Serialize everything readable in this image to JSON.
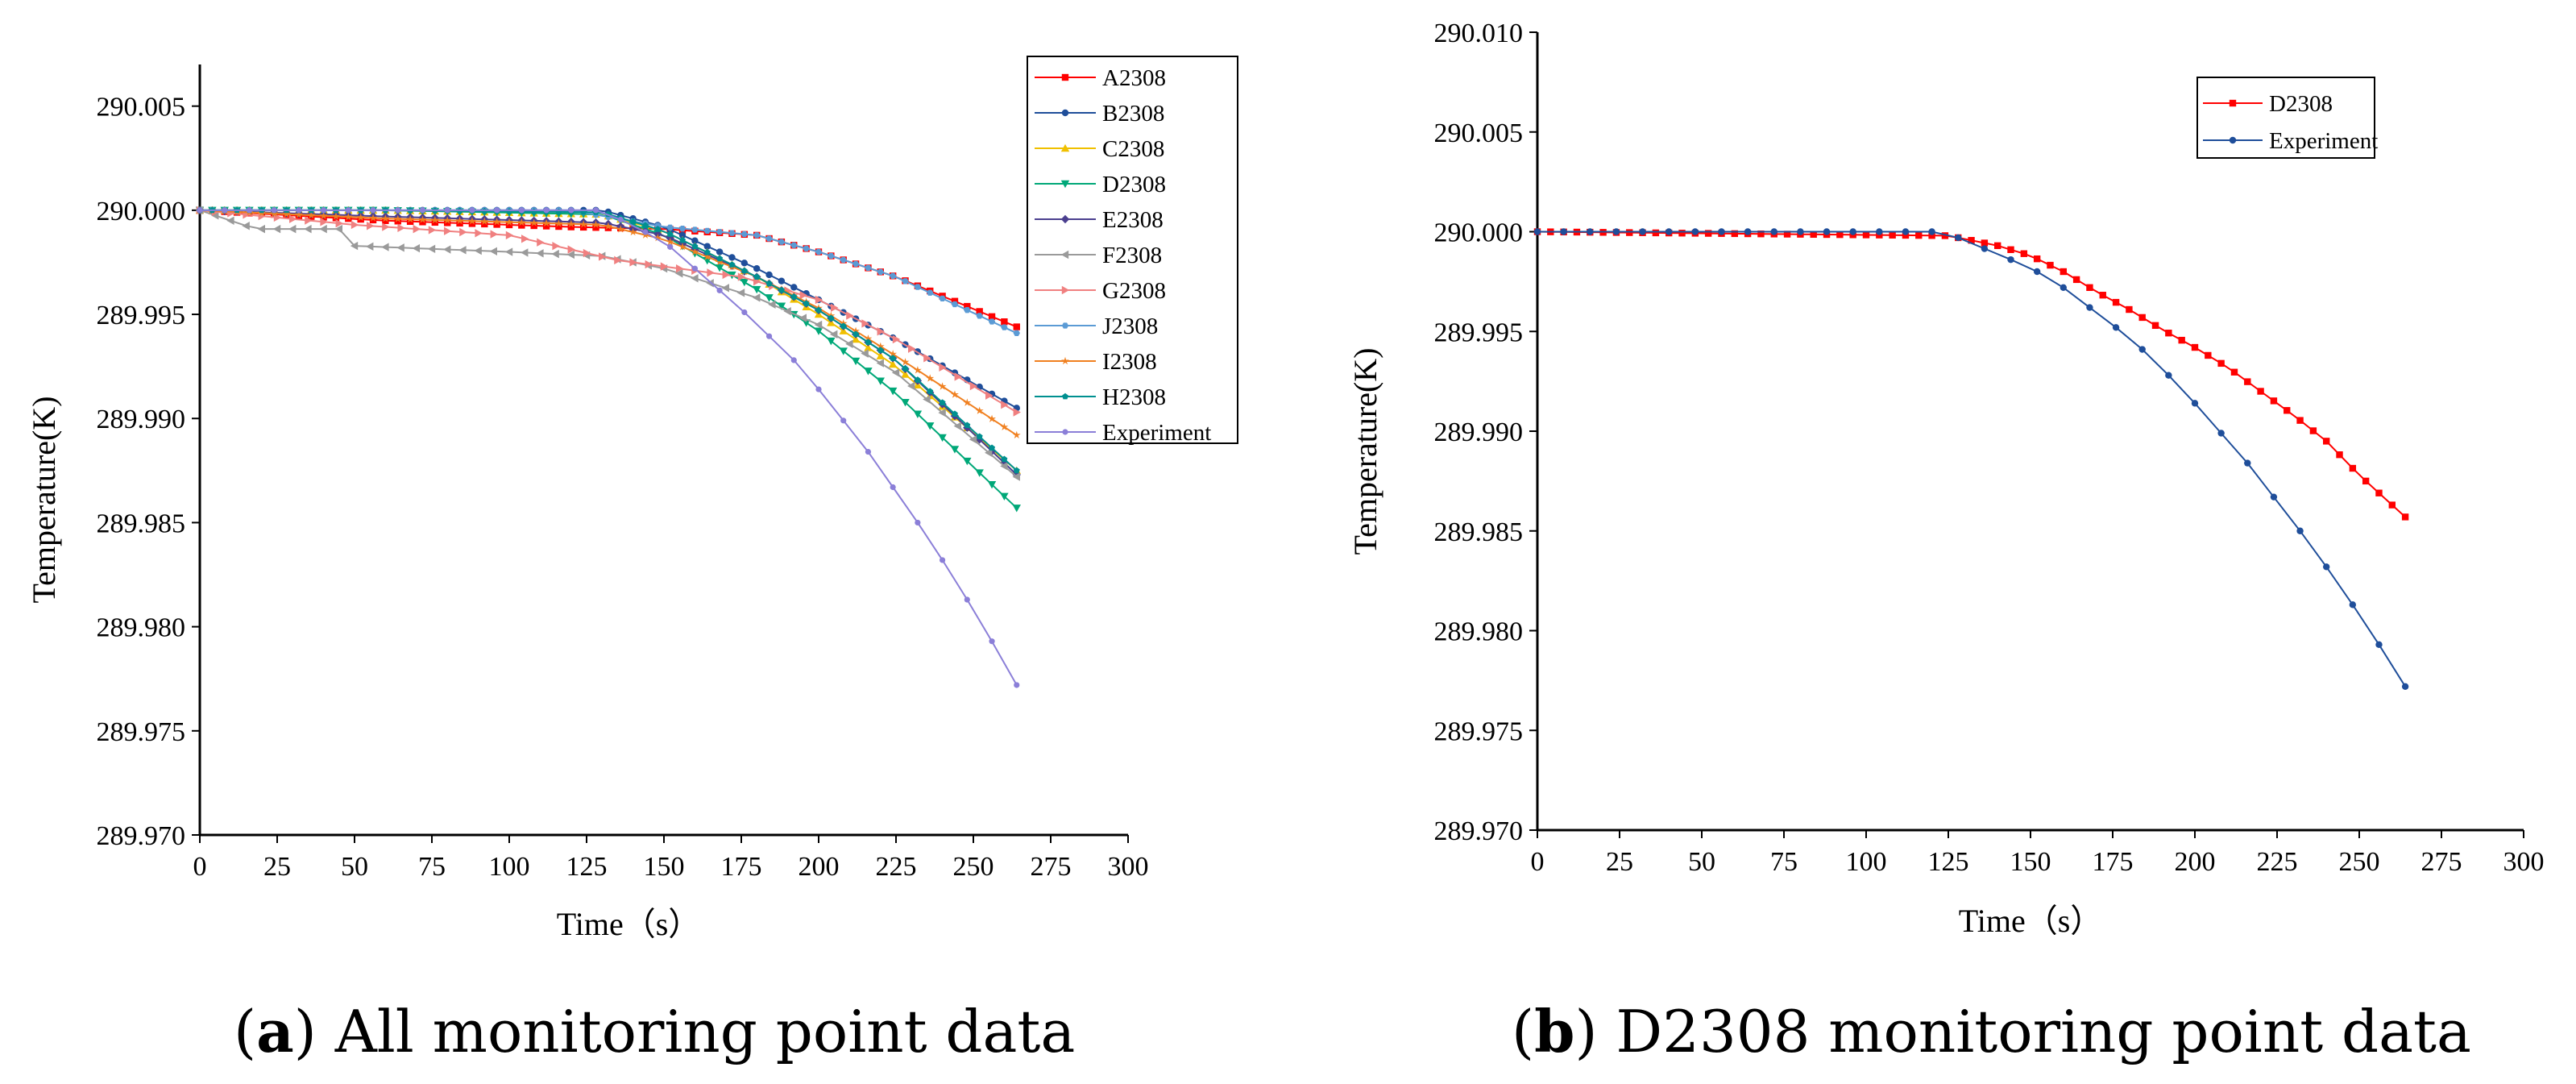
{
  "chart_data": [
    {
      "type": "line",
      "caption": {
        "label": "a",
        "text": " All monitoring point data"
      },
      "xlabel": "Time（s）",
      "ylabel": "Temperature(K)",
      "xlim": [
        0,
        300
      ],
      "ylim": [
        289.97,
        290.007
      ],
      "xticks": [
        "0",
        "25",
        "50",
        "75",
        "100",
        "125",
        "150",
        "175",
        "200",
        "225",
        "250",
        "275",
        "300"
      ],
      "yticks": [
        "289.970",
        "289.975",
        "289.980",
        "289.985",
        "289.990",
        "289.995",
        "290.000",
        "290.005"
      ],
      "legend_position": "top-right",
      "series": [
        {
          "name": "A2308",
          "color": "#ff0000",
          "marker": "square",
          "step": 4,
          "x_end": 264,
          "knots": [
            [
              0,
              290.0
            ],
            [
              60,
              289.9995
            ],
            [
              120,
              289.9992
            ],
            [
              150,
              289.9991
            ],
            [
              180,
              289.9988
            ],
            [
              200,
              289.998
            ],
            [
              225,
              289.9968
            ],
            [
              264,
              289.9944
            ]
          ]
        },
        {
          "name": "B2308",
          "color": "#1f4e9a",
          "marker": "circle",
          "step": 4,
          "x_end": 264,
          "knots": [
            [
              0,
              290.0
            ],
            [
              60,
              290.0
            ],
            [
              130,
              290.0
            ],
            [
              150,
              289.9992
            ],
            [
              180,
              289.9972
            ],
            [
              200,
              289.9957
            ],
            [
              225,
              289.9938
            ],
            [
              264,
              289.9905
            ]
          ]
        },
        {
          "name": "C2308",
          "color": "#f0c000",
          "marker": "triangle-up",
          "step": 4,
          "x_end": 264,
          "knots": [
            [
              0,
              290.0
            ],
            [
              60,
              290.0
            ],
            [
              130,
              289.9998
            ],
            [
              150,
              289.999
            ],
            [
              180,
              289.9968
            ],
            [
              200,
              289.995
            ],
            [
              225,
              289.9925
            ],
            [
              264,
              289.9875
            ]
          ]
        },
        {
          "name": "D2308",
          "color": "#00a878",
          "marker": "triangle-down",
          "step": 4,
          "x_end": 264,
          "knots": [
            [
              0,
              290.0
            ],
            [
              60,
              290.0
            ],
            [
              130,
              289.9998
            ],
            [
              150,
              289.9988
            ],
            [
              180,
              289.9962
            ],
            [
              200,
              289.9942
            ],
            [
              225,
              289.9912
            ],
            [
              264,
              289.9857
            ]
          ]
        },
        {
          "name": "E2308",
          "color": "#4b3f8f",
          "marker": "diamond",
          "step": 4,
          "x_end": 264,
          "knots": [
            [
              0,
              290.0
            ],
            [
              60,
              289.9997
            ],
            [
              130,
              289.9994
            ],
            [
              150,
              289.9988
            ],
            [
              180,
              289.9968
            ],
            [
              200,
              289.9952
            ],
            [
              225,
              289.9928
            ],
            [
              264,
              289.9873
            ]
          ]
        },
        {
          "name": "F2308",
          "color": "#9a9a9a",
          "marker": "triangle-left",
          "step": 5,
          "x_end": 264,
          "knots": [
            [
              0,
              290.0
            ],
            [
              18,
              289.9991
            ],
            [
              45,
              289.9991
            ],
            [
              48,
              289.9983
            ],
            [
              100,
              289.998
            ],
            [
              130,
              289.9978
            ],
            [
              150,
              289.9972
            ],
            [
              180,
              289.9958
            ],
            [
              200,
              289.9945
            ],
            [
              225,
              289.9922
            ],
            [
              264,
              289.9872
            ]
          ]
        },
        {
          "name": "G2308",
          "color": "#f08080",
          "marker": "triangle-right",
          "step": 5,
          "x_end": 264,
          "knots": [
            [
              0,
              290.0
            ],
            [
              50,
              289.9993
            ],
            [
              100,
              289.9988
            ],
            [
              135,
              289.9976
            ],
            [
              150,
              289.9973
            ],
            [
              175,
              289.9968
            ],
            [
              200,
              289.9957
            ],
            [
              225,
              289.9938
            ],
            [
              264,
              289.9903
            ]
          ]
        },
        {
          "name": "J2308",
          "color": "#5b9bd5",
          "marker": "hexagon",
          "step": 4,
          "x_end": 264,
          "knots": [
            [
              0,
              290.0
            ],
            [
              60,
              290.0
            ],
            [
              120,
              290.0
            ],
            [
              150,
              289.9992
            ],
            [
              180,
              289.9988
            ],
            [
              200,
              289.998
            ],
            [
              225,
              289.9968
            ],
            [
              264,
              289.9941
            ]
          ]
        },
        {
          "name": "I2308",
          "color": "#f08020",
          "marker": "star",
          "step": 4,
          "x_end": 264,
          "knots": [
            [
              0,
              290.0
            ],
            [
              60,
              289.9996
            ],
            [
              130,
              289.9993
            ],
            [
              150,
              289.9986
            ],
            [
              180,
              289.9968
            ],
            [
              200,
              289.9953
            ],
            [
              225,
              289.993
            ],
            [
              264,
              289.9892
            ]
          ]
        },
        {
          "name": "H2308",
          "color": "#009090",
          "marker": "pentagon",
          "step": 4,
          "x_end": 264,
          "knots": [
            [
              0,
              290.0
            ],
            [
              60,
              290.0
            ],
            [
              130,
              289.9999
            ],
            [
              150,
              289.999
            ],
            [
              180,
              289.9968
            ],
            [
              200,
              289.9952
            ],
            [
              225,
              289.9928
            ],
            [
              264,
              289.9875
            ]
          ]
        },
        {
          "name": "Experiment",
          "color": "#8b7fd8",
          "marker": "circle-small",
          "step": 8,
          "x_end": 264,
          "knots": [
            [
              0,
              290.0
            ],
            [
              130,
              290.0
            ],
            [
              150,
              289.9985
            ],
            [
              160,
              289.9972
            ],
            [
              176,
              289.9951
            ],
            [
              192,
              289.9928
            ],
            [
              200,
              289.9914
            ],
            [
              208,
              289.9899
            ],
            [
              216,
              289.9884
            ],
            [
              224,
              289.9867
            ],
            [
              232,
              289.985
            ],
            [
              240,
              289.9832
            ],
            [
              248,
              289.9813
            ],
            [
              256,
              289.9793
            ],
            [
              264,
              289.9772
            ]
          ]
        }
      ]
    },
    {
      "type": "line",
      "caption": {
        "label": "b",
        "text": " D2308 monitoring point data"
      },
      "xlabel": "Time（s）",
      "ylabel": "Temperature(K)",
      "xlim": [
        0,
        300
      ],
      "ylim": [
        289.97,
        290.01
      ],
      "xticks": [
        "0",
        "25",
        "50",
        "75",
        "100",
        "125",
        "150",
        "175",
        "200",
        "225",
        "250",
        "275",
        "300"
      ],
      "yticks": [
        "289.970",
        "289.975",
        "289.980",
        "289.985",
        "289.990",
        "289.995",
        "290.000",
        "290.005",
        "290.010"
      ],
      "legend_position": "top-right",
      "series": [
        {
          "name": "D2308",
          "color": "#ff0000",
          "marker": "square",
          "step": 4,
          "x_end": 264,
          "knots": [
            [
              0,
              290.0
            ],
            [
              125,
              289.9998
            ],
            [
              140,
              289.9993
            ],
            [
              150,
              289.9988
            ],
            [
              160,
              289.998
            ],
            [
              170,
              289.997
            ],
            [
              180,
              289.9961
            ],
            [
              190,
              289.9951
            ],
            [
              200,
              289.9942
            ],
            [
              210,
              289.9932
            ],
            [
              220,
              289.992
            ],
            [
              230,
              289.9908
            ],
            [
              240,
              289.9895
            ],
            [
              250,
              289.9878
            ],
            [
              264,
              289.9857
            ]
          ]
        },
        {
          "name": "Experiment",
          "color": "#1f4e9a",
          "marker": "circle",
          "step": 8,
          "x_end": 264,
          "knots": [
            [
              0,
              290.0
            ],
            [
              120,
              290.0
            ],
            [
              128,
              289.9997
            ],
            [
              144,
              289.9986
            ],
            [
              152,
              289.998
            ],
            [
              160,
              289.9972
            ],
            [
              168,
              289.9962
            ],
            [
              176,
              289.9952
            ],
            [
              184,
              289.9941
            ],
            [
              192,
              289.9928
            ],
            [
              200,
              289.9914
            ],
            [
              208,
              289.9899
            ],
            [
              216,
              289.9884
            ],
            [
              224,
              289.9867
            ],
            [
              232,
              289.985
            ],
            [
              240,
              289.9832
            ],
            [
              248,
              289.9813
            ],
            [
              256,
              289.9793
            ],
            [
              264,
              289.9772
            ]
          ]
        }
      ]
    }
  ]
}
